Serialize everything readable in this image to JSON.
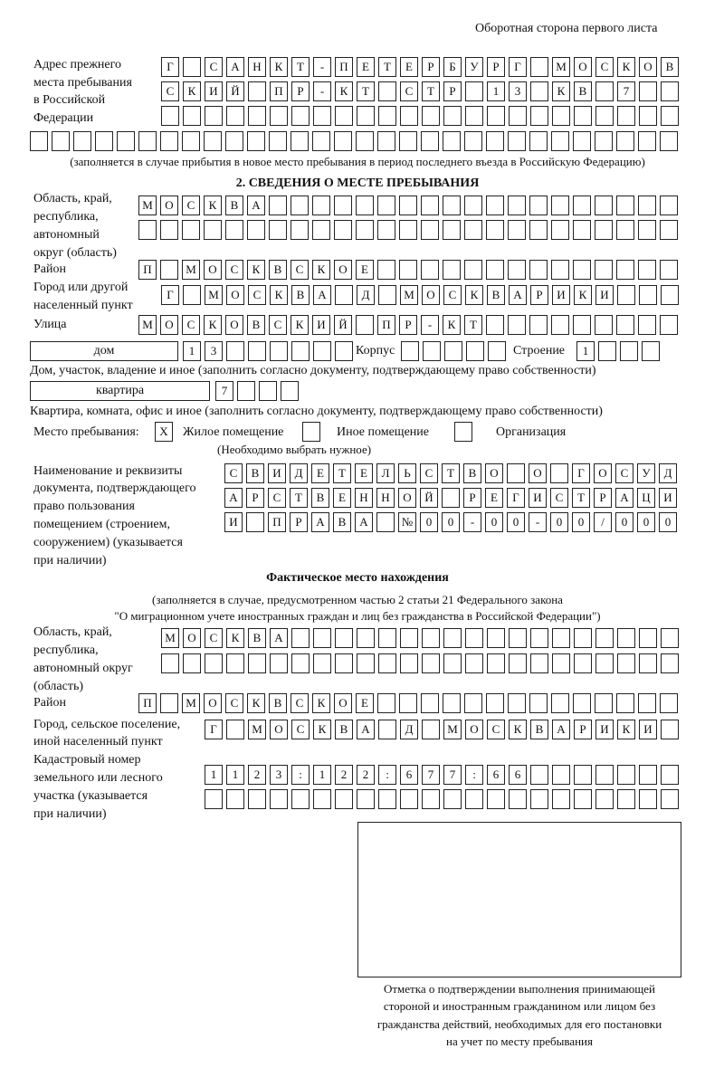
{
  "header": "Оборотная сторона первого листа",
  "prev_address": {
    "label": [
      "Адрес прежнего",
      "места пребывания",
      "в Российской",
      "Федерации"
    ],
    "rows": [
      [
        "Г",
        "",
        "С",
        "А",
        "Н",
        "К",
        "Т",
        "-",
        "П",
        "Е",
        "Т",
        "Е",
        "Р",
        "Б",
        "У",
        "Р",
        "Г",
        "",
        "М",
        "О",
        "С",
        "К",
        "О",
        "В"
      ],
      [
        "С",
        "К",
        "И",
        "Й",
        "",
        "П",
        "Р",
        "-",
        "К",
        "Т",
        "",
        "С",
        "Т",
        "Р",
        "",
        "1",
        "3",
        "",
        "К",
        "В",
        "",
        "7",
        "",
        ""
      ],
      [
        "",
        "",
        "",
        "",
        "",
        "",
        "",
        "",
        "",
        "",
        "",
        "",
        "",
        "",
        "",
        "",
        "",
        "",
        "",
        "",
        "",
        "",
        "",
        ""
      ],
      [
        "",
        "",
        "",
        "",
        "",
        "",
        "",
        "",
        "",
        "",
        "",
        "",
        "",
        "",
        "",
        "",
        "",
        "",
        "",
        "",
        "",
        "",
        "",
        "",
        "",
        "",
        "",
        "",
        "",
        ""
      ]
    ],
    "note": "(заполняется в случае прибытия в новое место пребывания в период последнего въезда в Российскую Федерацию)"
  },
  "section2": {
    "title": "2. СВЕДЕНИЯ О МЕСТЕ ПРЕБЫВАНИЯ",
    "region_label": [
      "Область, край,",
      "республика,",
      "автономный",
      "округ (область)"
    ],
    "region_rows": [
      [
        "М",
        "О",
        "С",
        "К",
        "В",
        "А",
        "",
        "",
        "",
        "",
        "",
        "",
        "",
        "",
        "",
        "",
        "",
        "",
        "",
        "",
        "",
        "",
        "",
        "",
        ""
      ],
      [
        "",
        "",
        "",
        "",
        "",
        "",
        "",
        "",
        "",
        "",
        "",
        "",
        "",
        "",
        "",
        "",
        "",
        "",
        "",
        "",
        "",
        "",
        "",
        "",
        ""
      ]
    ],
    "district_label": "Район",
    "district_row": [
      "П",
      "",
      "М",
      "О",
      "С",
      "К",
      "В",
      "С",
      "К",
      "О",
      "Е",
      "",
      "",
      "",
      "",
      "",
      "",
      "",
      "",
      "",
      "",
      "",
      "",
      "",
      ""
    ],
    "city_label": [
      "Город или другой",
      "населенный пункт"
    ],
    "city_row": [
      "Г",
      "",
      "М",
      "О",
      "С",
      "К",
      "В",
      "А",
      "",
      "Д",
      "",
      "М",
      "О",
      "С",
      "К",
      "В",
      "А",
      "Р",
      "И",
      "К",
      "И",
      "",
      "",
      ""
    ],
    "street_label": "Улица",
    "street_row": [
      "М",
      "О",
      "С",
      "К",
      "О",
      "В",
      "С",
      "К",
      "И",
      "Й",
      "",
      "П",
      "Р",
      "-",
      "К",
      "Т",
      "",
      "",
      "",
      "",
      "",
      "",
      "",
      "",
      ""
    ],
    "house_type": "дом",
    "house_row": [
      "1",
      "3",
      "",
      "",
      "",
      "",
      "",
      ""
    ],
    "korpus_label": "Корпус",
    "korpus_row": [
      "",
      "",
      "",
      "",
      ""
    ],
    "stroenie_label": "Строение",
    "stroenie_row": [
      "1",
      "",
      "",
      ""
    ],
    "house_note": "Дом, участок, владение и иное (заполнить согласно документу, подтверждающему право собственности)",
    "flat_type": "квартира",
    "flat_row": [
      "7",
      "",
      "",
      ""
    ],
    "flat_note": "Квартира, комната, офис и иное (заполнить согласно документу, подтверждающему право собственности)",
    "stay_label": "Место пребывания:",
    "stay_options": [
      {
        "label": "Жилое помещение",
        "mark": "X"
      },
      {
        "label": "Иное помещение",
        "mark": ""
      },
      {
        "label": "Организация",
        "mark": ""
      }
    ],
    "stay_note": "(Необходимо выбрать нужное)",
    "doc_label": [
      "Наименование и реквизиты",
      "документа, подтверждающего",
      "право пользования",
      "помещением (строением,",
      "сооружением) (указывается",
      "при наличии)"
    ],
    "doc_rows": [
      [
        "С",
        "В",
        "И",
        "Д",
        "Е",
        "Т",
        "Е",
        "Л",
        "Ь",
        "С",
        "Т",
        "В",
        "О",
        "",
        "О",
        "",
        "Г",
        "О",
        "С",
        "У",
        "Д"
      ],
      [
        "А",
        "Р",
        "С",
        "Т",
        "В",
        "Е",
        "Н",
        "Н",
        "О",
        "Й",
        "",
        "Р",
        "Е",
        "Г",
        "И",
        "С",
        "Т",
        "Р",
        "А",
        "Ц",
        "И"
      ],
      [
        "И",
        "",
        "П",
        "Р",
        "А",
        "В",
        "А",
        "",
        "№",
        "0",
        "0",
        "-",
        "0",
        "0",
        "-",
        "0",
        "0",
        "/",
        "0",
        "0",
        "0"
      ]
    ]
  },
  "actual": {
    "title": "Фактическое место нахождения",
    "note": [
      "(заполняется в случае, предусмотренном частью 2 статьи 21 Федерального закона",
      "\"О миграционном учете иностранных граждан и лиц без гражданства в Российской Федерации\")"
    ],
    "region_label": [
      "Область, край,",
      "республика,",
      "автономный округ",
      "(область)"
    ],
    "region_rows": [
      [
        "М",
        "О",
        "С",
        "К",
        "В",
        "А",
        "",
        "",
        "",
        "",
        "",
        "",
        "",
        "",
        "",
        "",
        "",
        "",
        "",
        "",
        "",
        "",
        "",
        ""
      ],
      [
        "",
        "",
        "",
        "",
        "",
        "",
        "",
        "",
        "",
        "",
        "",
        "",
        "",
        "",
        "",
        "",
        "",
        "",
        "",
        "",
        "",
        "",
        "",
        ""
      ]
    ],
    "district_label": "Район",
    "district_row": [
      "П",
      "",
      "М",
      "О",
      "С",
      "К",
      "В",
      "С",
      "К",
      "О",
      "Е",
      "",
      "",
      "",
      "",
      "",
      "",
      "",
      "",
      "",
      "",
      "",
      "",
      "",
      ""
    ],
    "city_label": [
      "Город, сельское поселение,",
      "иной населенный пункт"
    ],
    "city_row": [
      "Г",
      "",
      "М",
      "О",
      "С",
      "К",
      "В",
      "А",
      "",
      "Д",
      "",
      "М",
      "О",
      "С",
      "К",
      "В",
      "А",
      "Р",
      "И",
      "К",
      "И",
      ""
    ],
    "cadastral_label": [
      "Кадастровый номер",
      "земельного или лесного",
      "участка (указывается",
      "при наличии)"
    ],
    "cadastral_rows": [
      [
        "1",
        "1",
        "2",
        "3",
        ":",
        "1",
        "2",
        "2",
        ":",
        "6",
        "7",
        "7",
        ":",
        "6",
        "6",
        "",
        "",
        "",
        "",
        "",
        "",
        ""
      ],
      [
        "",
        "",
        "",
        "",
        "",
        "",
        "",
        "",
        "",
        "",
        "",
        "",
        "",
        "",
        "",
        "",
        "",
        "",
        "",
        "",
        "",
        ""
      ]
    ]
  },
  "stamp_caption": [
    "Отметка о подтверждении выполнения принимающей",
    "стороной и иностранным гражданином или лицом без",
    "гражданства действий, необходимых для его постановки",
    "на учет по месту пребывания"
  ]
}
